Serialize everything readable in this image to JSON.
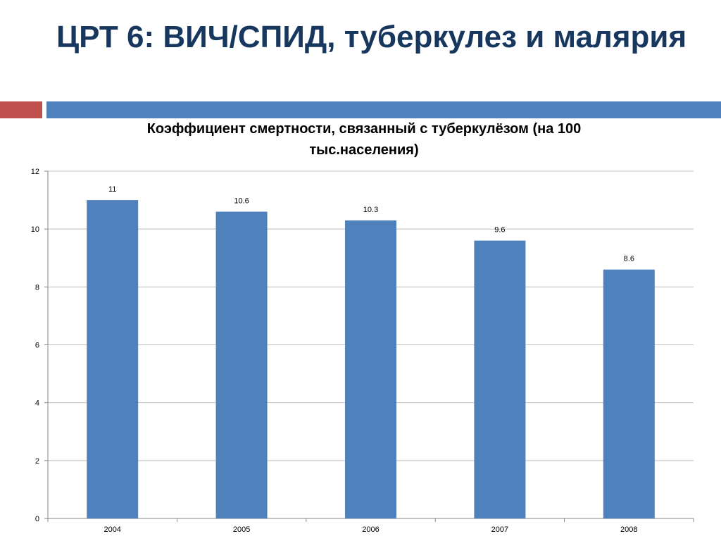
{
  "slide": {
    "title": "ЦРТ 6: ВИЧ/СПИД, туберкулез и малярия"
  },
  "colors": {
    "title": "#17375e",
    "accent_red": "#c0504d",
    "accent_blue": "#4f81bd",
    "bar": "#4f81bd",
    "grid": "#bfbfbf"
  },
  "chart_data": {
    "type": "bar",
    "title": "Коэффициент смертности, связанный с туберкулёзом (на 100 тыс.населения)",
    "categories": [
      "2004",
      "2005",
      "2006",
      "2007",
      "2008"
    ],
    "values": [
      11,
      10.6,
      10.3,
      9.6,
      8.6
    ],
    "value_labels": [
      "11",
      "10.6",
      "10.3",
      "9.6",
      "8.6"
    ],
    "xlabel": "",
    "ylabel": "",
    "ylim": [
      0,
      12
    ],
    "yticks": [
      "0",
      "2",
      "4",
      "6",
      "8",
      "10",
      "12"
    ],
    "grid": true,
    "legend": "none"
  }
}
